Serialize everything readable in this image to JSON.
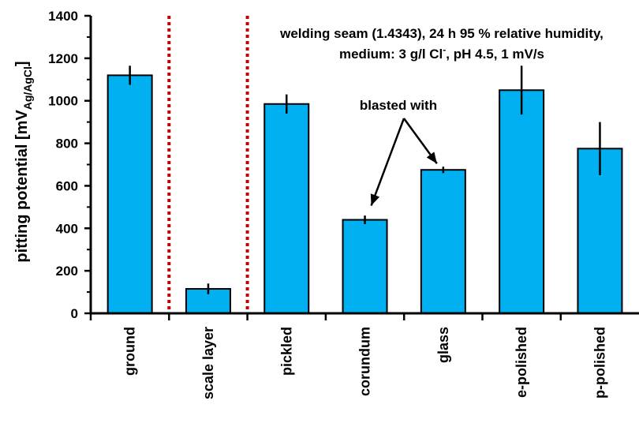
{
  "colors": {
    "bar": "#00B0F0",
    "bar_outline": "#000000",
    "divider": "#C00000",
    "background": "#FFFFFF"
  },
  "chart_data": {
    "type": "bar",
    "categories": [
      "ground",
      "scale layer",
      "pickled",
      "corundum",
      "glass",
      "e-polished",
      "p-polished"
    ],
    "values": [
      1120,
      115,
      985,
      440,
      675,
      1050,
      775
    ],
    "error": [
      45,
      25,
      45,
      20,
      15,
      115,
      125
    ],
    "ylim": [
      0,
      1400
    ],
    "yticks": [
      0,
      200,
      400,
      600,
      800,
      1000,
      1200,
      1400
    ],
    "ylabel": {
      "main": "pitting potential [mV",
      "sub": "Ag/AgCl",
      "close": "]"
    },
    "grid": false,
    "legend": "none",
    "dividers_after_category_index": [
      0,
      1
    ],
    "annotations": {
      "conditions_line1": "welding seam (1.4343),  24 h 95 % relative humidity,",
      "conditions_line2_a": "medium: 3 g/l Cl",
      "conditions_line2_sup": "-",
      "conditions_line2_b": ", pH 4.5, 1 mV/s",
      "blasted": "blasted with",
      "blasted_targets": [
        "corundum",
        "glass"
      ]
    }
  }
}
